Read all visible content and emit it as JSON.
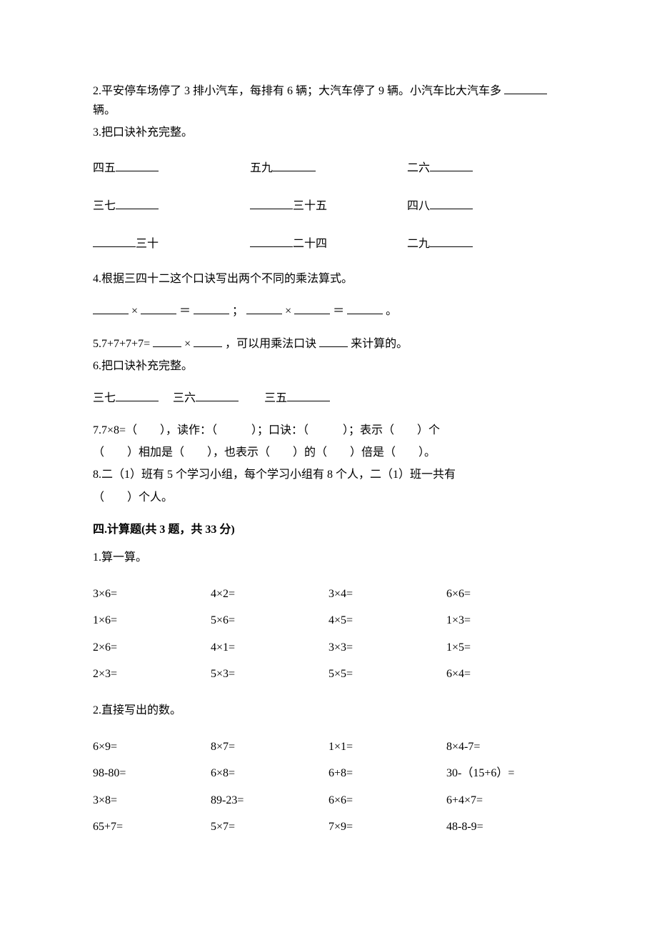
{
  "q2": "2.平安停车场停了 3 排小汽车，每排有 6 辆；大汽车停了 9 辆。小汽车比大汽车多",
  "q2_suffix": "辆。",
  "q3_title": "3.把口诀补充完整。",
  "q3": {
    "r1": {
      "a": "四五",
      "b": "五九",
      "c": "二六"
    },
    "r2": {
      "a": "三七",
      "b_suffix": "三十五",
      "c": "四八"
    },
    "r3": {
      "a_suffix": "三十",
      "b_suffix": "二十四",
      "c": "二九"
    }
  },
  "q4_title": "4.根据三四十二这个口诀写出两个不同的乘法算式。",
  "q4": {
    "mul": "×",
    "eq": "＝",
    "sep": "；",
    "end": "。"
  },
  "q5_prefix": "5.7+7+7+7=",
  "q5_mul": "×",
  "q5_mid": "，可以用乘法口诀",
  "q5_suffix": "来计算的。",
  "q6_title": "6.把口诀补充完整。",
  "q6": {
    "a": "三七",
    "b": "三六",
    "c": "三五"
  },
  "q7_a": "7.7×8=（　　），读作：（　　　）；口诀：（　　　）；表示（　　）个",
  "q7_b": "（　　）相加是（　　），也表示（　　）的（　　）倍是（　　）。",
  "q8_a": "8.二（1）班有 5 个学习小组，每个学习小组有 8 个人，二（1）班一共有",
  "q8_b": "（　　）个人。",
  "s4_title": "四.计算题(共 3 题，共 33 分)",
  "s4_q1_title": "1.算一算。",
  "s4_q1": {
    "r1": {
      "a": "3×6=",
      "b": "4×2=",
      "c": "3×4=",
      "d": "6×6="
    },
    "r2": {
      "a": "1×6=",
      "b": "5×6=",
      "c": "4×5=",
      "d": "1×3="
    },
    "r3": {
      "a": "2×6=",
      "b": "4×1=",
      "c": "3×3=",
      "d": "1×5="
    },
    "r4": {
      "a": "2×3=",
      "b": "5×3=",
      "c": "5×5=",
      "d": "6×4="
    }
  },
  "s4_q2_title": "2.直接写出的数。",
  "s4_q2": {
    "r1": {
      "a": "6×9=",
      "b": "8×7=",
      "c": "1×1=",
      "d": "8×4-7="
    },
    "r2": {
      "a": "98-80=",
      "b": "6×8=",
      "c": "6+8=",
      "d": "30-（15+6）="
    },
    "r3": {
      "a": "3×8=",
      "b": "89-23=",
      "c": "6×6=",
      "d": "6+4×7="
    },
    "r4": {
      "a": "65+7=",
      "b": "5×7=",
      "c": "7×9=",
      "d": "48-8-9="
    }
  }
}
